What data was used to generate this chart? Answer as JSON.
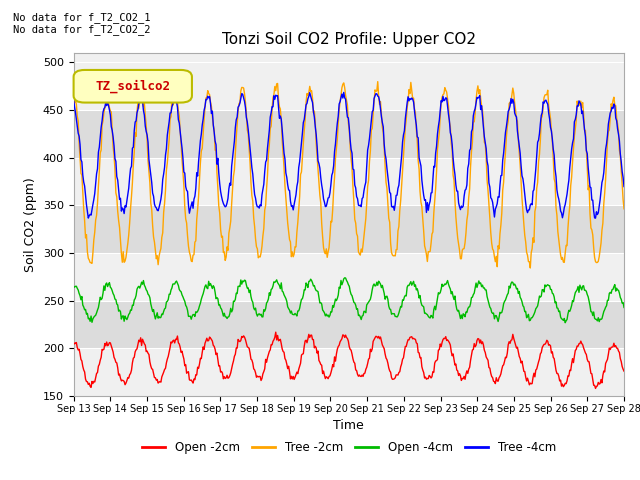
{
  "title": "Tonzi Soil CO2 Profile: Upper CO2",
  "xlabel": "Time",
  "ylabel": "Soil CO2 (ppm)",
  "ylim": [
    150,
    510
  ],
  "yticks": [
    150,
    200,
    250,
    300,
    350,
    400,
    450,
    500
  ],
  "annotations": [
    "No data for f_T2_CO2_1",
    "No data for f_T2_CO2_2"
  ],
  "legend_label": "TZ_soilco2",
  "series_labels": [
    "Open -2cm",
    "Tree -2cm",
    "Open -4cm",
    "Tree -4cm"
  ],
  "series_colors": [
    "#ff0000",
    "#ffa500",
    "#00bb00",
    "#0000ff"
  ],
  "background_color": "#ffffff",
  "plot_bg_color": "#f0f0f0",
  "stripe_color": "#dcdcdc",
  "date_start": 13,
  "date_end": 28,
  "num_points": 600
}
